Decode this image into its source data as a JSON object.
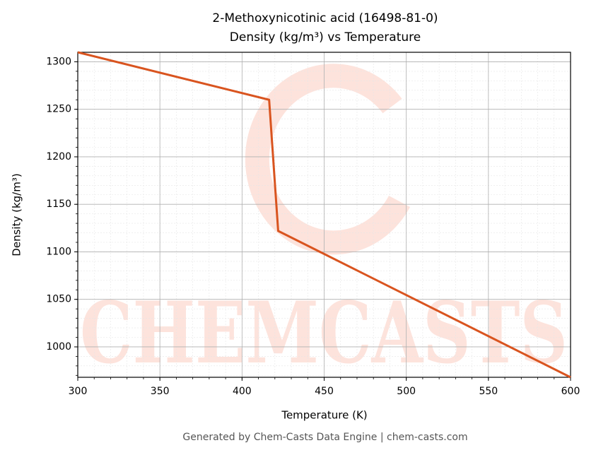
{
  "chart_data": {
    "type": "line",
    "title": "2-Methoxynicotinic acid (16498-81-0)",
    "subtitle": "Density (kg/m³) vs Temperature",
    "x_label": "Temperature (K)",
    "y_label": "Density (kg/m³)",
    "watermark": "CHEMCASTS",
    "footer": "Generated by Chem-Casts Data Engine | chem-casts.com",
    "x": [
      300,
      416.5,
      422,
      600
    ],
    "series": [
      {
        "name": "Density",
        "color": "#d9541f",
        "values": [
          1310,
          1260,
          1122,
          968
        ]
      }
    ],
    "xlim": [
      300,
      600
    ],
    "xticks": [
      300,
      350,
      400,
      450,
      500,
      550,
      600
    ],
    "ylim": [
      968,
      1310
    ],
    "yticks": [
      1000,
      1050,
      1100,
      1150,
      1200,
      1250,
      1300
    ],
    "grid": true
  }
}
